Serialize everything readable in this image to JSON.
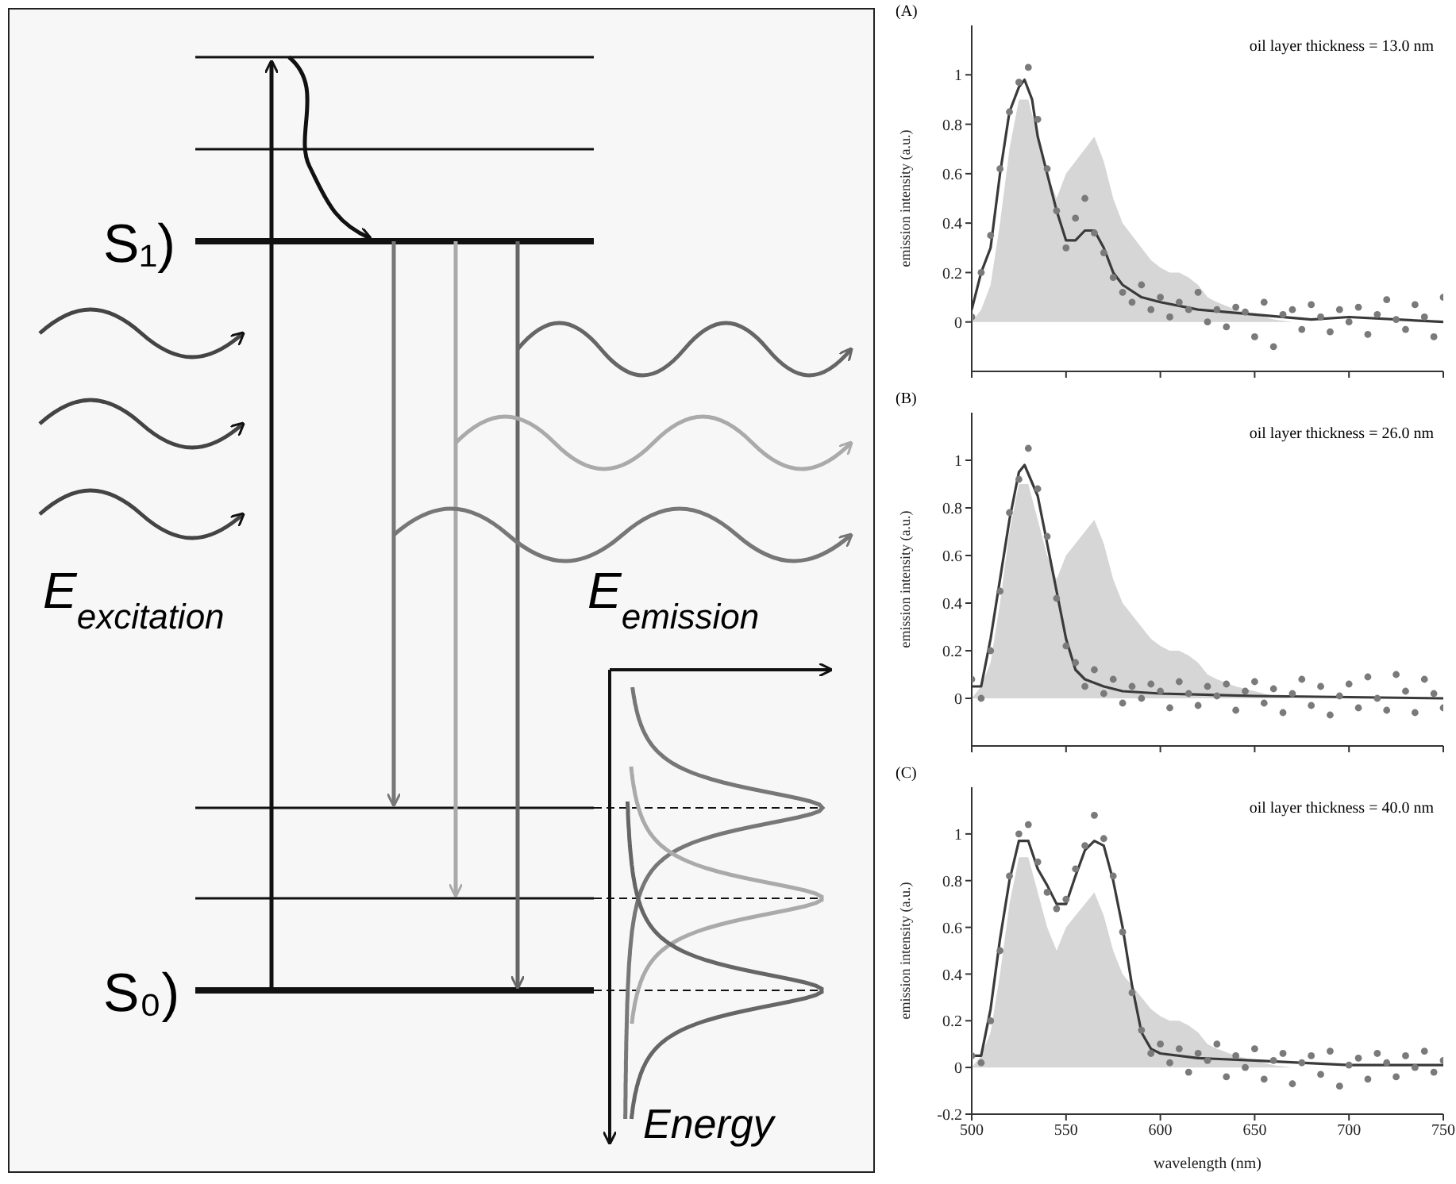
{
  "chart_data": [
    {
      "type": "other",
      "annotations": [
        "S₁)",
        "S₀)",
        "E$_{excitation}$",
        "E$_{emission}$",
        "Energy"
      ]
    },
    {
      "type": "scatter",
      "title": "(A)",
      "ylabel": "emission intensity (a.u.)",
      "annotations": [
        "oil layer thickness = 13.0 nm"
      ],
      "xlim": [
        500,
        750
      ],
      "xticks": [
        500,
        550,
        600,
        650,
        700,
        750
      ],
      "ylim": [
        -0.2,
        1.2
      ],
      "yticks": [
        0,
        0.2,
        0.4,
        0.6,
        0.8,
        1
      ],
      "tick_labels": "y",
      "x": [
        500,
        505,
        510,
        515,
        520,
        525,
        530,
        535,
        540,
        545,
        550,
        555,
        560,
        565,
        570,
        575,
        580,
        585,
        590,
        595,
        600,
        605,
        610,
        615,
        620,
        625,
        630,
        635,
        640,
        645,
        650,
        655,
        660,
        665,
        670,
        675,
        680,
        685,
        690,
        695,
        700,
        705,
        710,
        715,
        720,
        725,
        730,
        735,
        740,
        745,
        750
      ],
      "series": [
        {
          "type": "area",
          "color": "#d6d6d6",
          "x": [
            500,
            505,
            510,
            515,
            520,
            525,
            530,
            535,
            540,
            545,
            550,
            555,
            560,
            565,
            570,
            575,
            580,
            585,
            590,
            595,
            600,
            605,
            610,
            615,
            620,
            625,
            630,
            640,
            650,
            660,
            670,
            750
          ],
          "values": [
            0,
            0.05,
            0.15,
            0.4,
            0.7,
            0.9,
            0.9,
            0.75,
            0.6,
            0.5,
            0.6,
            0.65,
            0.7,
            0.75,
            0.65,
            0.5,
            0.4,
            0.35,
            0.3,
            0.25,
            0.22,
            0.2,
            0.2,
            0.18,
            0.15,
            0.1,
            0.08,
            0.05,
            0.03,
            0.01,
            0,
            0
          ]
        },
        {
          "type": "scatter",
          "color": "#7a7a7a",
          "marker": "circle",
          "values": [
            0.02,
            0.2,
            0.35,
            0.62,
            0.85,
            0.97,
            1.03,
            0.82,
            0.62,
            0.45,
            0.3,
            0.42,
            0.5,
            0.36,
            0.28,
            0.18,
            0.12,
            0.08,
            0.15,
            0.05,
            0.1,
            0.02,
            0.08,
            0.05,
            0.12,
            0,
            0.05,
            -0.02,
            0.06,
            0.04,
            -0.06,
            0.08,
            -0.1,
            0.03,
            0.05,
            -0.03,
            0.07,
            0.02,
            -0.04,
            0.05,
            0,
            0.06,
            -0.05,
            0.03,
            0.09,
            0.01,
            -0.03,
            0.07,
            0.02,
            -0.06,
            0.1
          ]
        },
        {
          "type": "line",
          "color": "#3a3a3a",
          "x": [
            500,
            505,
            510,
            515,
            520,
            525,
            528,
            532,
            535,
            540,
            545,
            550,
            555,
            560,
            565,
            570,
            575,
            580,
            590,
            600,
            620,
            650,
            680,
            700,
            750
          ],
          "values": [
            0.05,
            0.2,
            0.3,
            0.6,
            0.85,
            0.95,
            0.98,
            0.9,
            0.75,
            0.6,
            0.45,
            0.33,
            0.33,
            0.37,
            0.37,
            0.3,
            0.2,
            0.15,
            0.1,
            0.08,
            0.05,
            0.03,
            0.01,
            0.02,
            0
          ]
        }
      ]
    },
    {
      "type": "scatter",
      "title": "(B)",
      "ylabel": "emission intensity (a.u.)",
      "annotations": [
        "oil layer thickness = 26.0 nm"
      ],
      "xlim": [
        500,
        750
      ],
      "xticks": [
        500,
        550,
        600,
        650,
        700,
        750
      ],
      "ylim": [
        -0.2,
        1.2
      ],
      "yticks": [
        0,
        0.2,
        0.4,
        0.6,
        0.8,
        1
      ],
      "tick_labels": "y",
      "x": [
        500,
        505,
        510,
        515,
        520,
        525,
        530,
        535,
        540,
        545,
        550,
        555,
        560,
        565,
        570,
        575,
        580,
        585,
        590,
        595,
        600,
        605,
        610,
        615,
        620,
        625,
        630,
        635,
        640,
        645,
        650,
        655,
        660,
        665,
        670,
        675,
        680,
        685,
        690,
        695,
        700,
        705,
        710,
        715,
        720,
        725,
        730,
        735,
        740,
        745,
        750
      ],
      "series": [
        {
          "type": "area",
          "color": "#d6d6d6",
          "x": [
            500,
            505,
            510,
            515,
            520,
            525,
            530,
            535,
            540,
            545,
            550,
            555,
            560,
            565,
            570,
            575,
            580,
            585,
            590,
            595,
            600,
            605,
            610,
            615,
            620,
            625,
            630,
            640,
            650,
            660,
            670,
            750
          ],
          "values": [
            0,
            0.05,
            0.15,
            0.4,
            0.7,
            0.9,
            0.9,
            0.75,
            0.6,
            0.5,
            0.6,
            0.65,
            0.7,
            0.75,
            0.65,
            0.5,
            0.4,
            0.35,
            0.3,
            0.25,
            0.22,
            0.2,
            0.2,
            0.18,
            0.15,
            0.1,
            0.08,
            0.05,
            0.03,
            0.01,
            0,
            0
          ]
        },
        {
          "type": "scatter",
          "color": "#7a7a7a",
          "marker": "circle",
          "values": [
            0.08,
            0,
            0.2,
            0.45,
            0.78,
            0.92,
            1.05,
            0.88,
            0.68,
            0.42,
            0.22,
            0.15,
            0.05,
            0.12,
            0.02,
            0.08,
            -0.02,
            0.05,
            0,
            0.06,
            0.03,
            -0.04,
            0.07,
            0.02,
            -0.03,
            0.05,
            0.01,
            0.06,
            -0.05,
            0.03,
            0.07,
            -0.02,
            0.04,
            -0.06,
            0.02,
            0.08,
            -0.03,
            0.05,
            -0.07,
            0.01,
            0.06,
            -0.04,
            0.09,
            0,
            -0.05,
            0.1,
            0.03,
            -0.06,
            0.08,
            0.02,
            -0.04
          ]
        },
        {
          "type": "line",
          "color": "#3a3a3a",
          "x": [
            500,
            505,
            510,
            515,
            520,
            525,
            528,
            535,
            540,
            545,
            550,
            555,
            560,
            570,
            580,
            600,
            650,
            750
          ],
          "values": [
            0.05,
            0.05,
            0.25,
            0.5,
            0.75,
            0.95,
            0.98,
            0.85,
            0.65,
            0.45,
            0.25,
            0.12,
            0.08,
            0.05,
            0.03,
            0.02,
            0.01,
            0
          ]
        }
      ]
    },
    {
      "type": "scatter",
      "title": "(C)",
      "xlabel": "wavelength (nm)",
      "ylabel": "emission intensity (a.u.)",
      "annotations": [
        "oil layer thickness = 40.0 nm"
      ],
      "xlim": [
        500,
        750
      ],
      "xticks": [
        500,
        550,
        600,
        650,
        700,
        750
      ],
      "ylim": [
        -0.2,
        1.2
      ],
      "yticks": [
        -0.2,
        0,
        0.2,
        0.4,
        0.6,
        0.8,
        1
      ],
      "x": [
        500,
        505,
        510,
        515,
        520,
        525,
        530,
        535,
        540,
        545,
        550,
        555,
        560,
        565,
        570,
        575,
        580,
        585,
        590,
        595,
        600,
        605,
        610,
        615,
        620,
        625,
        630,
        635,
        640,
        645,
        650,
        655,
        660,
        665,
        670,
        675,
        680,
        685,
        690,
        695,
        700,
        705,
        710,
        715,
        720,
        725,
        730,
        735,
        740,
        745,
        750
      ],
      "series": [
        {
          "type": "area",
          "color": "#d6d6d6",
          "x": [
            500,
            505,
            510,
            515,
            520,
            525,
            530,
            535,
            540,
            545,
            550,
            555,
            560,
            565,
            570,
            575,
            580,
            585,
            590,
            595,
            600,
            605,
            610,
            615,
            620,
            625,
            630,
            640,
            650,
            660,
            670,
            750
          ],
          "values": [
            0,
            0.05,
            0.15,
            0.4,
            0.7,
            0.9,
            0.9,
            0.75,
            0.6,
            0.5,
            0.6,
            0.65,
            0.7,
            0.75,
            0.65,
            0.5,
            0.4,
            0.35,
            0.3,
            0.25,
            0.22,
            0.2,
            0.2,
            0.18,
            0.15,
            0.1,
            0.08,
            0.05,
            0.03,
            0.01,
            0,
            0
          ]
        },
        {
          "type": "scatter",
          "color": "#7a7a7a",
          "marker": "circle",
          "values": [
            0.05,
            0.02,
            0.2,
            0.5,
            0.82,
            1,
            1.04,
            0.88,
            0.75,
            0.68,
            0.72,
            0.85,
            0.95,
            1.08,
            0.98,
            0.82,
            0.58,
            0.32,
            0.16,
            0.06,
            0.1,
            0.02,
            0.08,
            -0.02,
            0.06,
            0.03,
            0.1,
            -0.04,
            0.05,
            0,
            0.08,
            -0.05,
            0.03,
            0.06,
            -0.07,
            0.02,
            0.05,
            -0.03,
            0.07,
            -0.08,
            0.01,
            0.04,
            -0.05,
            0.06,
            0.02,
            -0.04,
            0.05,
            0,
            0.07,
            -0.02,
            0.03
          ]
        },
        {
          "type": "line",
          "color": "#3a3a3a",
          "x": [
            500,
            505,
            510,
            515,
            520,
            525,
            530,
            535,
            540,
            545,
            550,
            555,
            560,
            565,
            570,
            575,
            580,
            585,
            590,
            595,
            600,
            620,
            650,
            700,
            750
          ],
          "values": [
            0.05,
            0.05,
            0.25,
            0.55,
            0.8,
            0.97,
            0.97,
            0.85,
            0.78,
            0.7,
            0.7,
            0.82,
            0.93,
            0.97,
            0.95,
            0.8,
            0.6,
            0.35,
            0.15,
            0.08,
            0.06,
            0.04,
            0.03,
            0.01,
            0.01
          ]
        }
      ]
    }
  ]
}
